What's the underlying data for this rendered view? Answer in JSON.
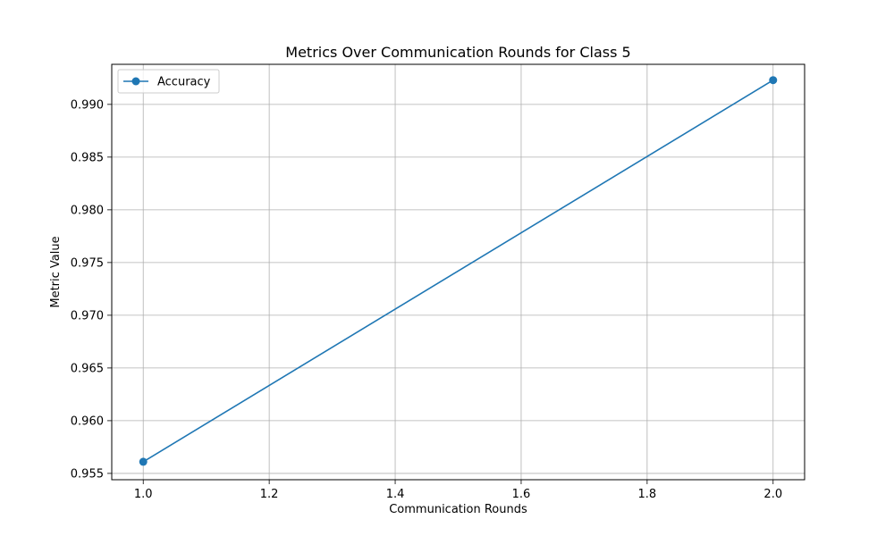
{
  "chart_data": {
    "type": "line",
    "title": "Metrics Over Communication Rounds for Class 5",
    "xlabel": "Communication Rounds",
    "ylabel": "Metric Value",
    "xlim": [
      0.95,
      2.05
    ],
    "ylim": [
      0.9544,
      0.9938
    ],
    "xticks": [
      1.0,
      1.2,
      1.4,
      1.6,
      1.8,
      2.0
    ],
    "xtick_labels": [
      "1.0",
      "1.2",
      "1.4",
      "1.6",
      "1.8",
      "2.0"
    ],
    "yticks": [
      0.955,
      0.96,
      0.965,
      0.97,
      0.975,
      0.98,
      0.985,
      0.99
    ],
    "ytick_labels": [
      "0.955",
      "0.960",
      "0.965",
      "0.970",
      "0.975",
      "0.980",
      "0.985",
      "0.990"
    ],
    "grid": true,
    "legend_position": "upper-left",
    "series": [
      {
        "name": "Accuracy",
        "color": "#1f77b4",
        "marker": "circle",
        "x": [
          1.0,
          2.0
        ],
        "y": [
          0.9561,
          0.9923
        ]
      }
    ]
  }
}
